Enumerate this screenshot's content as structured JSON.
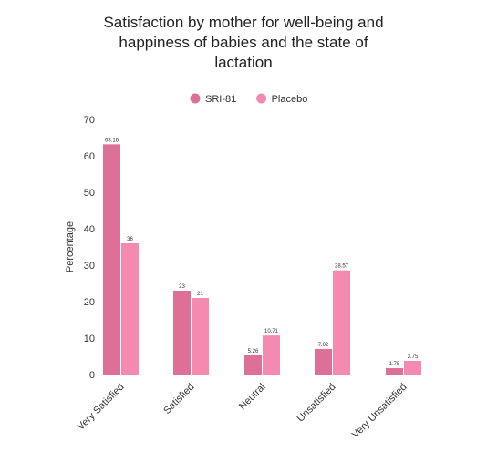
{
  "chart_data": {
    "type": "bar",
    "title": "Satisfaction by mother for well-being and happiness of babies and the state of lactation",
    "title_lines": [
      "Satisfaction by mother for well-being and",
      "happiness of babies and the state of",
      "lactation"
    ],
    "xlabel": "",
    "ylabel": "Percentage",
    "ylim": [
      0,
      70
    ],
    "yticks": [
      0,
      10,
      20,
      30,
      40,
      50,
      60,
      70
    ],
    "categories": [
      "Very Satisfied",
      "Satisfied",
      "Neutral",
      "Unsatisfied",
      "Very Unsatisfied"
    ],
    "series": [
      {
        "name": "SRI-81",
        "color": "#dc7096",
        "values": [
          63.16,
          23,
          5.26,
          7.02,
          1.75
        ],
        "labels": [
          "63.16",
          "23",
          "5.26",
          "7.02",
          "1.75"
        ]
      },
      {
        "name": "Placebo",
        "color": "#f48aaf",
        "values": [
          36,
          21,
          10.71,
          28.57,
          3.75
        ],
        "labels": [
          "36",
          "21",
          "10.71",
          "28.57",
          "3.75"
        ]
      }
    ],
    "grid": false,
    "legend_position": "top-center"
  }
}
